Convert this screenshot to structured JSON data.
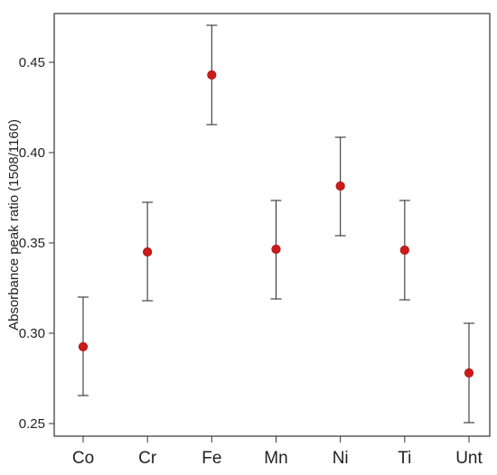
{
  "chart_data": {
    "type": "scatter",
    "ylabel": "Absorbance peak ratio (1508/1160)",
    "xlabel": "",
    "title": "",
    "categories": [
      "Co",
      "Cr",
      "Fe",
      "Mn",
      "Ni",
      "Ti",
      "Unt"
    ],
    "values": [
      0.2925,
      0.345,
      0.443,
      0.3465,
      0.3815,
      0.346,
      0.278
    ],
    "error_low": [
      0.2655,
      0.318,
      0.4155,
      0.319,
      0.354,
      0.3185,
      0.2505
    ],
    "error_high": [
      0.32,
      0.3725,
      0.4705,
      0.3735,
      0.4085,
      0.3735,
      0.3055
    ],
    "yticks": [
      "0.25",
      "0.30",
      "0.35",
      "0.40",
      "0.45"
    ],
    "ylim": [
      0.243,
      0.477
    ],
    "grid": false,
    "legend": "none",
    "colors": {
      "point": "#cc1a1a",
      "errorbar": "#333333",
      "axis": "#333333"
    }
  }
}
